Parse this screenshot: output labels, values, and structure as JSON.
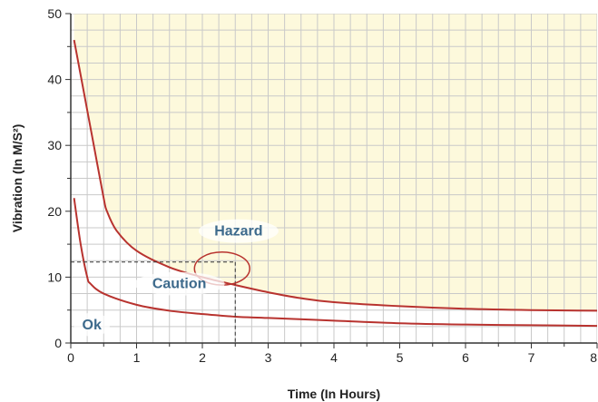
{
  "chart_data": {
    "type": "line",
    "xlabel": "Time (In Hours)",
    "ylabel": "Vibration (In M/S²)",
    "xlim": [
      0,
      8
    ],
    "ylim": [
      0,
      50
    ],
    "x_ticks": [
      "0",
      "1",
      "2",
      "3",
      "4",
      "5",
      "6",
      "7",
      "8"
    ],
    "y_ticks": [
      "0",
      "10",
      "20",
      "30",
      "40",
      "50"
    ],
    "grid": true,
    "series": [
      {
        "x": [
          0.05,
          0.2,
          0.35,
          0.5,
          0.55,
          0.7,
          1.0,
          1.5,
          2.0,
          2.5,
          3.0,
          3.5,
          4.0,
          5.0,
          6.0,
          7.0,
          8.0
        ],
        "y": [
          46,
          38,
          30,
          22,
          20,
          17,
          14,
          11.5,
          10,
          8.8,
          7.7,
          6.8,
          6.2,
          5.6,
          5.2,
          5.0,
          4.9
        ]
      },
      {
        "x": [
          0.05,
          0.15,
          0.25,
          0.3,
          0.5,
          1.0,
          1.5,
          2.0,
          2.5,
          3.0,
          4.0,
          5.0,
          6.0,
          7.0,
          8.0
        ],
        "y": [
          22,
          15,
          10,
          9,
          7.5,
          5.8,
          4.9,
          4.4,
          4.0,
          3.8,
          3.4,
          3.0,
          2.8,
          2.7,
          2.6
        ]
      }
    ],
    "annotations": [
      {
        "text": "Hazard",
        "x": 2.55,
        "y": 16.3
      },
      {
        "text": "Caution",
        "x": 1.65,
        "y": 8.3
      },
      {
        "text": "Ok",
        "x": 0.32,
        "y": 2.1
      }
    ],
    "reference_point": {
      "x": 2.5,
      "y": 12.3
    },
    "highlight_ellipse": {
      "cx": 2.3,
      "cy": 11.3,
      "rx": 0.42,
      "ry": 2.5
    },
    "colors": {
      "curve": "#b8332f",
      "hazard_fill": "#fdf9dc",
      "plot_background": "#ffffff",
      "grid": "#c9c9c9",
      "axis": "#333333",
      "zone_label": "#3d6a8c",
      "reference_line": "#333333"
    }
  }
}
